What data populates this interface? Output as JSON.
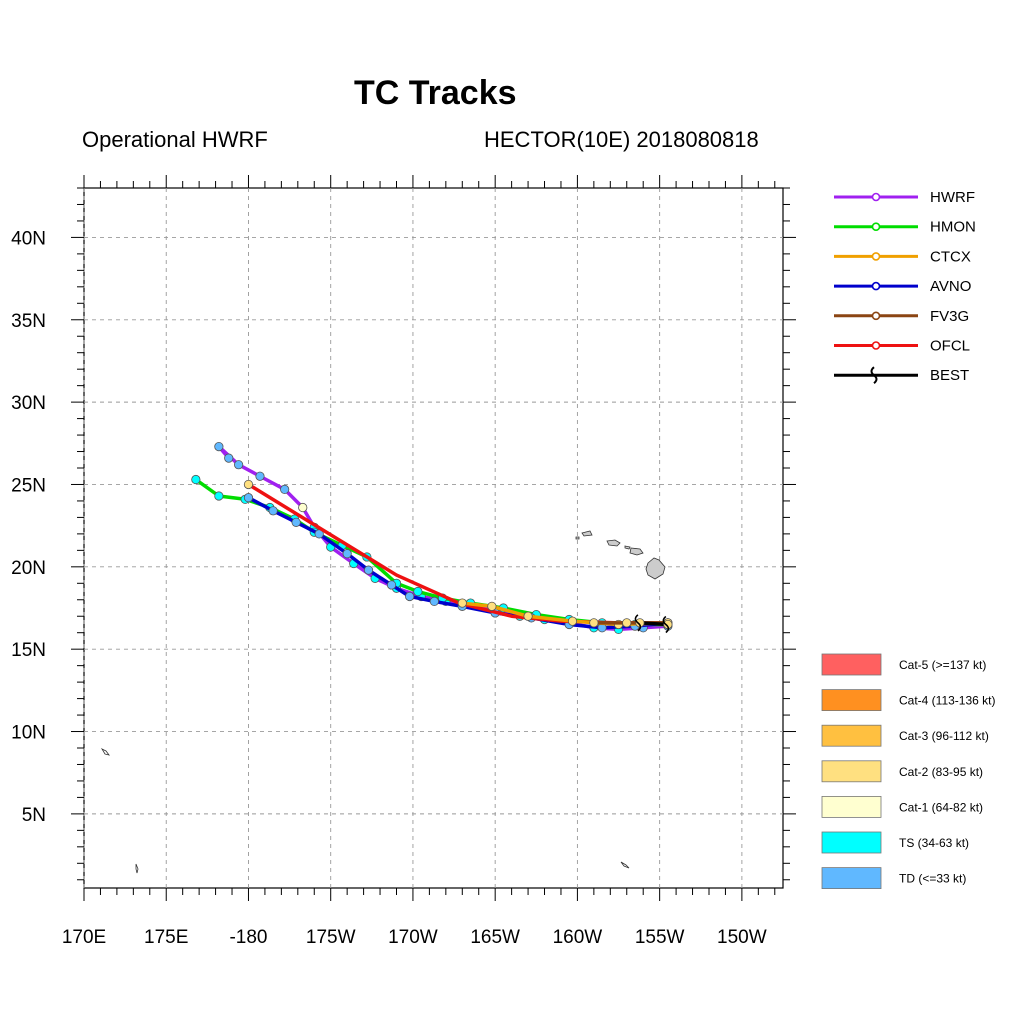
{
  "chart_data": {
    "type": "line",
    "title": "TC Tracks",
    "subtitle_left": "Operational HWRF",
    "subtitle_right": "HECTOR(10E) 2018080818",
    "xlabel": "",
    "ylabel": "",
    "xlim": [
      170,
      212.5
    ],
    "ylim": [
      0.5,
      43
    ],
    "x_ticks": [
      170,
      175,
      180,
      185,
      190,
      195,
      200,
      205,
      210
    ],
    "x_tick_labels": [
      "170E",
      "175E",
      "-180",
      "175W",
      "170W",
      "165W",
      "160W",
      "155W",
      "150W"
    ],
    "y_ticks": [
      5,
      10,
      15,
      20,
      25,
      30,
      35,
      40
    ],
    "y_tick_labels": [
      "5N",
      "10N",
      "15N",
      "20N",
      "25N",
      "30N",
      "35N",
      "40N"
    ],
    "grid": true,
    "legend_position": "right",
    "series": [
      {
        "name": "HWRF",
        "color": "#a020f0",
        "x": [
          205.5,
          204,
          202.5,
          201,
          199.5,
          198,
          196.5,
          195,
          193.5,
          192,
          190.5,
          189,
          187.7,
          186.4,
          185,
          184,
          183.3,
          182.2,
          180.7,
          179.4,
          178.2,
          178.8
        ],
        "y": [
          16.4,
          16.3,
          16.2,
          16.3,
          16.6,
          16.8,
          17.0,
          17.4,
          17.7,
          17.9,
          18.2,
          18.7,
          19.3,
          20.2,
          21.2,
          22.4,
          23.6,
          24.7,
          25.5,
          26.2,
          27.3,
          26.6
        ],
        "categories": [
          "TD",
          "TD",
          "TS",
          "TS",
          "TS",
          "TS",
          "TS",
          "TS",
          "TS",
          "TS",
          "TS",
          "TS",
          "TS",
          "TS",
          "TS",
          "TS",
          "Cat-1",
          "TD",
          "TD",
          "TD",
          "TD",
          "TD"
        ]
      },
      {
        "name": "HMON",
        "color": "#00dd00",
        "x": [
          205.5,
          203.5,
          201.5,
          199.5,
          197.5,
          195.5,
          193.5,
          191.8,
          190.3,
          189,
          187.2,
          185.7,
          184,
          182.8,
          181.3,
          179.8,
          178.2,
          176.8
        ],
        "y": [
          16.5,
          16.5,
          16.6,
          16.8,
          17.1,
          17.5,
          17.8,
          18.1,
          18.5,
          19.0,
          20.6,
          21.3,
          22.1,
          22.9,
          23.6,
          24.1,
          24.3,
          25.3
        ],
        "categories": [
          "TS",
          "TS",
          "TS",
          "TS",
          "TS",
          "TS",
          "TS",
          "TS",
          "TS",
          "TS",
          "TS",
          "TS",
          "TS",
          "TS",
          "TS",
          "TS",
          "TS",
          "TS"
        ]
      },
      {
        "name": "CTCX",
        "color": "#f0a000",
        "x": [
          205.5,
          202.5,
          199.7,
          197,
          194.8,
          193.0
        ],
        "y": [
          16.6,
          16.5,
          16.7,
          17.0,
          17.6,
          17.8
        ],
        "categories": [
          "Cat-2",
          "Cat-2",
          "Cat-2",
          "Cat-2",
          "Cat-2",
          "Cat-2"
        ]
      },
      {
        "name": "AVNO",
        "color": "#0000cc",
        "x": [
          205.5,
          203.5,
          201.5,
          199.5,
          197.2,
          195,
          193,
          191.3,
          189.8,
          188.7,
          187.3,
          186,
          184.3,
          182.9,
          181.5,
          180
        ],
        "y": [
          16.6,
          16.4,
          16.3,
          16.5,
          16.9,
          17.2,
          17.6,
          17.9,
          18.2,
          18.9,
          19.8,
          20.8,
          22.0,
          22.7,
          23.4,
          24.2
        ],
        "categories": [
          "TD",
          "TD",
          "TD",
          "TD",
          "TD",
          "TD",
          "TD",
          "TD",
          "TD",
          "TD",
          "TD",
          "TD",
          "TD",
          "TD",
          "TD",
          "TD"
        ]
      },
      {
        "name": "FV3G",
        "color": "#8b4513",
        "x": [
          205.5,
          203,
          201
        ],
        "y": [
          16.6,
          16.6,
          16.6
        ],
        "categories": [
          "Cat-2",
          "Cat-2",
          "Cat-2"
        ]
      },
      {
        "name": "OFCL",
        "color": "#ee1111",
        "x": [
          205.5,
          202.5,
          199,
          196,
          192.8,
          189,
          180
        ],
        "y": [
          16.6,
          16.6,
          16.7,
          17.0,
          17.8,
          19.5,
          25.0
        ],
        "categories": [
          "Cat-2",
          "Cat-2",
          "Cat-2",
          "Cat-2",
          "Cat-2",
          "Cat-2",
          "Cat-2"
        ]
      },
      {
        "name": "BEST",
        "color": "#000000",
        "x": [
          205.5,
          203.8
        ],
        "y": [
          16.5,
          16.6
        ],
        "categories": [
          "Cat-2",
          "Cat-2"
        ]
      }
    ],
    "intensity_legend": [
      {
        "label": "Cat-5 (>=137 kt)",
        "color": "#ff6060"
      },
      {
        "label": "Cat-4 (113-136 kt)",
        "color": "#ff9020"
      },
      {
        "label": "Cat-3 (96-112 kt)",
        "color": "#ffc040"
      },
      {
        "label": "Cat-2 (83-95 kt)",
        "color": "#ffe080"
      },
      {
        "label": "Cat-1 (64-82 kt)",
        "color": "#ffffd0"
      },
      {
        "label": "TS (34-63 kt)",
        "color": "#00ffff"
      },
      {
        "label": "TD (<=33 kt)",
        "color": "#60b8ff"
      }
    ]
  }
}
